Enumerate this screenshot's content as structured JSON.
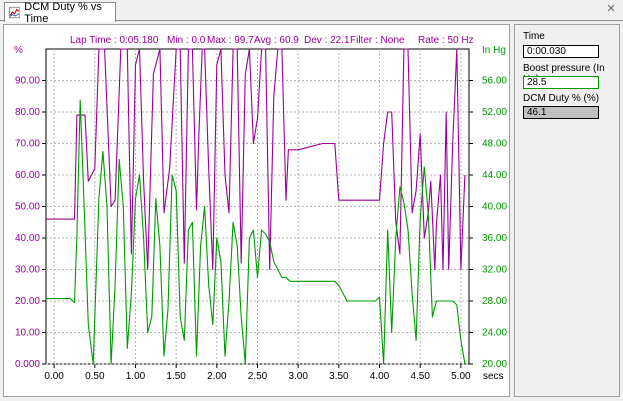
{
  "tab": {
    "title": "DCM Duty % vs Time",
    "icon": "chart-icon"
  },
  "window": {
    "close_icon": "close-icon"
  },
  "stats": {
    "lap_time": "Lap Time : 0:05.180",
    "min": "Min :  0.0",
    "max": "Max :  99.7",
    "avg": "Avg :  60.9",
    "dev": "Dev :  22.1",
    "filter": "Filter : None",
    "rate": "Rate : 50 Hz"
  },
  "side_panel": {
    "time_label": "Time",
    "time_value": "0:00.030",
    "boost_label": "Boost pressure (In Hg)",
    "boost_value": "28.5",
    "dcm_label": "DCM Duty % (%)",
    "dcm_value": "46.1"
  },
  "colors": {
    "dcm": "#990099",
    "boost": "#009900",
    "left_axis_text": "#990099",
    "right_axis_text": "#009900",
    "grid": "#b4b4b4",
    "dcm_box": "#c0c0c0",
    "boost_box_border": "#009900"
  },
  "chart_data": {
    "type": "line",
    "x_unit": "secs",
    "xlim": [
      -0.1,
      5.1
    ],
    "x_ticks": [
      "0.00",
      "0.50",
      "1.00",
      "1.50",
      "2.00",
      "2.50",
      "3.00",
      "3.50",
      "4.00",
      "4.50",
      "5.00"
    ],
    "left_axis": {
      "unit": "%",
      "ylim": [
        0,
        100
      ],
      "ticks": [
        "0.000",
        "10.00",
        "20.00",
        "30.00",
        "40.00",
        "50.00",
        "60.00",
        "70.00",
        "80.00",
        "90.00"
      ]
    },
    "right_axis": {
      "unit": "In Hg",
      "ylim": [
        20,
        60
      ],
      "ticks": [
        "20.00",
        "24.00",
        "28.00",
        "32.00",
        "36.00",
        "40.00",
        "44.00",
        "48.00",
        "52.00",
        "56.00"
      ]
    },
    "grid": true,
    "series": [
      {
        "name": "DCM Duty % (%)",
        "axis": "left",
        "x": [
          -0.1,
          0.0,
          0.2,
          0.25,
          0.28,
          0.38,
          0.42,
          0.5,
          0.55,
          0.62,
          0.7,
          0.75,
          0.82,
          0.9,
          0.95,
          1.0,
          1.05,
          1.1,
          1.15,
          1.22,
          1.3,
          1.35,
          1.42,
          1.5,
          1.55,
          1.6,
          1.65,
          1.7,
          1.75,
          1.78,
          1.82,
          1.85,
          1.9,
          1.95,
          2.0,
          2.05,
          2.1,
          2.15,
          2.2,
          2.25,
          2.3,
          2.35,
          2.4,
          2.45,
          2.5,
          2.55,
          2.6,
          2.65,
          2.7,
          2.75,
          2.8,
          2.85,
          2.88,
          3.0,
          3.3,
          3.45,
          3.5,
          3.55,
          3.6,
          3.65,
          3.7,
          3.75,
          3.8,
          3.85,
          3.95,
          4.0,
          4.05,
          4.1,
          4.15,
          4.2,
          4.25,
          4.3,
          4.35,
          4.4,
          4.45,
          4.5,
          4.55,
          4.6,
          4.63,
          4.68,
          4.7,
          4.75,
          4.78,
          4.82,
          4.85,
          4.9,
          4.95,
          5.0,
          5.05
        ],
        "y": [
          46,
          46,
          46,
          46,
          79,
          79,
          58,
          62,
          100,
          100,
          50,
          52,
          100,
          100,
          35,
          95,
          100,
          58,
          30,
          92,
          100,
          48,
          62,
          100,
          100,
          32,
          100,
          100,
          49,
          73,
          100,
          100,
          62,
          30,
          95,
          100,
          60,
          48,
          100,
          100,
          32,
          92,
          100,
          70,
          78,
          100,
          100,
          30,
          85,
          100,
          100,
          52,
          68,
          68,
          70,
          70,
          52,
          52,
          52,
          52,
          52,
          52,
          52,
          52,
          52,
          52,
          70,
          80,
          80,
          45,
          35,
          100,
          100,
          48,
          55,
          73,
          40,
          48,
          58,
          30,
          45,
          60,
          30,
          80,
          30,
          70,
          100,
          30,
          60
        ]
      },
      {
        "name": "Boost pressure (In Hg)",
        "axis": "right",
        "x": [
          -0.1,
          0.0,
          0.2,
          0.25,
          0.28,
          0.32,
          0.38,
          0.42,
          0.48,
          0.55,
          0.6,
          0.65,
          0.7,
          0.75,
          0.8,
          0.85,
          0.9,
          0.95,
          1.0,
          1.05,
          1.1,
          1.15,
          1.2,
          1.25,
          1.3,
          1.35,
          1.4,
          1.45,
          1.5,
          1.55,
          1.6,
          1.65,
          1.7,
          1.75,
          1.8,
          1.85,
          1.9,
          1.95,
          2.0,
          2.05,
          2.1,
          2.15,
          2.2,
          2.25,
          2.3,
          2.35,
          2.4,
          2.45,
          2.5,
          2.55,
          2.6,
          2.65,
          2.7,
          2.75,
          2.8,
          2.85,
          2.9,
          3.0,
          3.3,
          3.45,
          3.5,
          3.55,
          3.6,
          3.65,
          3.7,
          3.75,
          3.8,
          3.85,
          3.95,
          4.0,
          4.05,
          4.1,
          4.15,
          4.2,
          4.25,
          4.3,
          4.35,
          4.4,
          4.45,
          4.5,
          4.55,
          4.6,
          4.65,
          4.7,
          4.75,
          4.8,
          4.85,
          4.9,
          4.95,
          5.0,
          5.05
        ],
        "y": [
          28.3,
          28.3,
          28.3,
          27.8,
          36.3,
          53.5,
          37,
          25,
          20,
          41,
          47,
          40,
          20,
          30,
          46,
          40,
          22,
          29,
          41,
          44,
          36,
          24,
          26,
          41,
          35,
          21,
          27,
          44,
          42,
          26,
          23,
          37,
          38,
          21,
          35,
          40,
          30,
          25,
          36,
          33,
          21,
          28,
          38,
          35,
          26,
          20,
          36,
          37,
          31,
          37,
          36.5,
          35.5,
          33,
          32,
          31,
          31,
          30.5,
          30.5,
          30.5,
          30.5,
          30,
          29,
          28,
          28,
          28,
          28,
          28,
          28,
          28,
          28.5,
          20,
          37,
          24,
          36,
          42.5,
          40.5,
          37,
          29,
          23,
          38.5,
          45,
          39,
          26,
          28,
          28,
          28,
          28,
          28,
          27.5,
          23,
          20
        ]
      }
    ]
  }
}
